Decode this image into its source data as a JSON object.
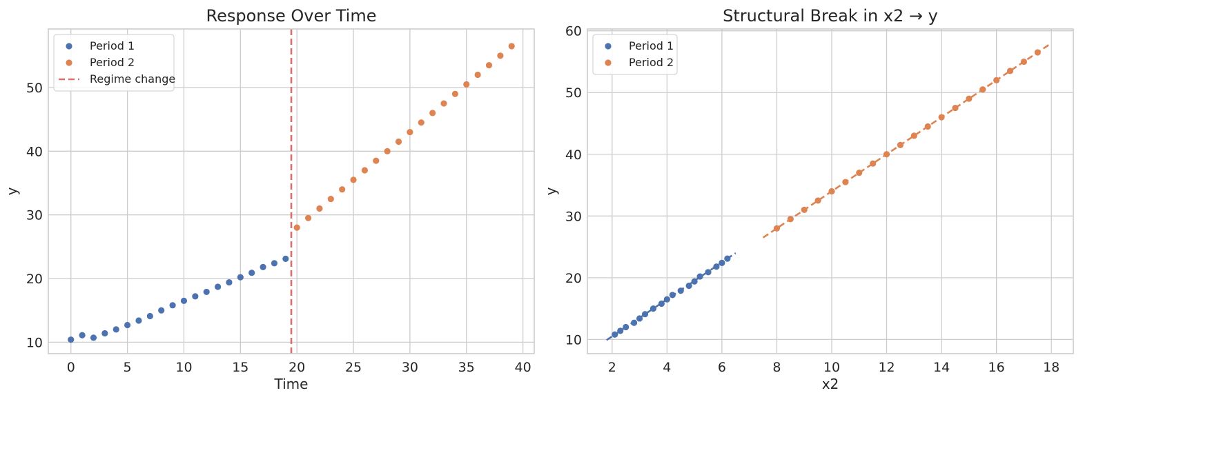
{
  "colors": {
    "period1": "#4c72b0",
    "period2": "#dd8452",
    "regime": "#d9706d"
  },
  "chart_data": [
    {
      "type": "scatter",
      "title": "Response Over Time",
      "xlabel": "Time",
      "ylabel": "y",
      "xlim": [
        -2,
        41
      ],
      "ylim": [
        8.2,
        59.2
      ],
      "xticks": [
        0,
        5,
        10,
        15,
        20,
        25,
        30,
        35,
        40
      ],
      "yticks": [
        10,
        20,
        30,
        40,
        50
      ],
      "grid": true,
      "legend": "top-left",
      "series": [
        {
          "name": "Period 1",
          "color_key": "period1",
          "x": [
            0,
            1,
            2,
            3,
            4,
            5,
            6,
            7,
            8,
            9,
            10,
            11,
            12,
            13,
            14,
            15,
            16,
            17,
            18,
            19
          ],
          "y": [
            10.4,
            11.1,
            10.7,
            11.4,
            12.0,
            12.7,
            13.4,
            14.1,
            15.0,
            15.8,
            16.5,
            17.2,
            17.9,
            18.7,
            19.4,
            20.2,
            20.9,
            21.8,
            22.4,
            23.1
          ]
        },
        {
          "name": "Period 2",
          "color_key": "period2",
          "x": [
            20,
            21,
            22,
            23,
            24,
            25,
            26,
            27,
            28,
            29,
            30,
            31,
            32,
            33,
            34,
            35,
            36,
            37,
            38,
            39
          ],
          "y": [
            28.0,
            29.5,
            31.0,
            32.5,
            34.0,
            35.5,
            37.0,
            38.5,
            40.0,
            41.5,
            43.0,
            44.5,
            46.0,
            47.5,
            49.0,
            50.5,
            52.0,
            53.5,
            55.0,
            56.5
          ]
        }
      ],
      "vlines": [
        {
          "name": "Regime change",
          "x": 19.5,
          "color_key": "regime",
          "style": "dashed"
        }
      ]
    },
    {
      "type": "scatter",
      "title": "Structural Break in x2 → y",
      "xlabel": "x2",
      "ylabel": "y",
      "xlim": [
        1.1,
        18.8
      ],
      "ylim": [
        7.7,
        60.3
      ],
      "xticks": [
        2,
        4,
        6,
        8,
        10,
        12,
        14,
        16,
        18
      ],
      "yticks": [
        10,
        20,
        30,
        40,
        50,
        60
      ],
      "grid": true,
      "legend": "top-left",
      "series": [
        {
          "name": "Period 1",
          "color_key": "period1",
          "x": [
            2.1,
            2.3,
            2.5,
            2.8,
            3.0,
            3.2,
            3.5,
            3.8,
            4.0,
            4.2,
            4.5,
            4.8,
            5.0,
            5.2,
            5.5,
            5.8,
            6.0,
            6.2
          ],
          "y": [
            10.8,
            11.4,
            12.0,
            12.7,
            13.4,
            14.1,
            15.0,
            15.8,
            16.5,
            17.2,
            17.9,
            18.7,
            19.4,
            20.2,
            20.9,
            21.8,
            22.4,
            23.1
          ],
          "fit": {
            "x": [
              1.8,
              6.5
            ],
            "y": [
              9.9,
              24.0
            ]
          }
        },
        {
          "name": "Period 2",
          "color_key": "period2",
          "x": [
            8.0,
            8.5,
            9.0,
            9.5,
            10.0,
            10.5,
            11.0,
            11.5,
            12.0,
            12.5,
            13.0,
            13.5,
            14.0,
            14.5,
            15.0,
            15.5,
            16.0,
            16.5,
            17.0,
            17.5
          ],
          "y": [
            28.0,
            29.5,
            31.0,
            32.5,
            34.0,
            35.5,
            37.0,
            38.5,
            40.0,
            41.5,
            43.0,
            44.5,
            46.0,
            47.5,
            49.0,
            50.5,
            52.0,
            53.5,
            55.0,
            56.5
          ],
          "fit": {
            "x": [
              7.5,
              18.0
            ],
            "y": [
              26.5,
              58.0
            ]
          }
        }
      ]
    }
  ]
}
